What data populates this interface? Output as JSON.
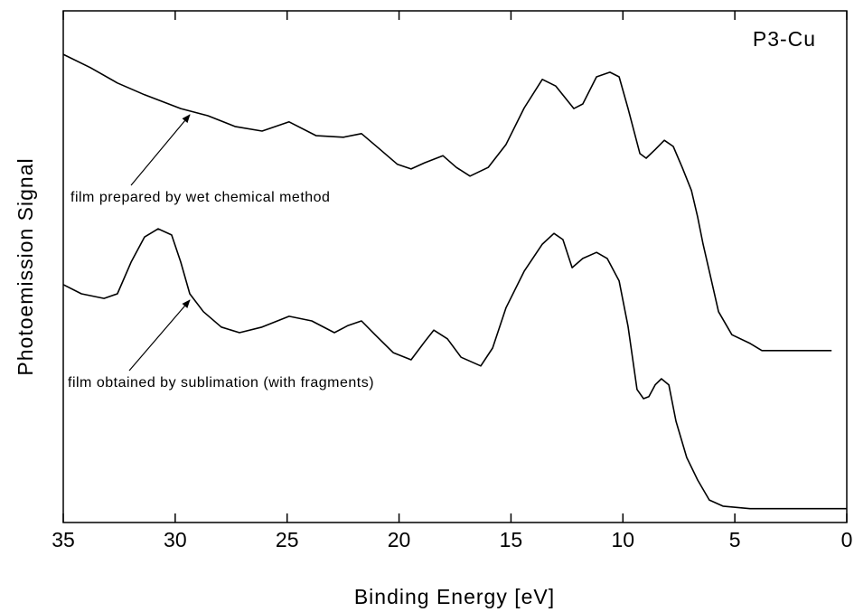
{
  "chart_data": {
    "type": "line",
    "x_label": "Binding Energy [eV]",
    "y_label": "Photoemission Signal",
    "xlim": [
      35,
      0
    ],
    "ylim": [
      0,
      100
    ],
    "xticks": [
      35,
      30,
      25,
      20,
      15,
      10,
      5,
      0
    ],
    "annotations": [
      "P3-Cu",
      "film prepared by wet chemical method",
      "film obtained by sublimation (with fragments)"
    ],
    "series": [
      {
        "color": "#000000",
        "x": [
          35.0,
          33.79,
          32.58,
          31.37,
          29.75,
          28.54,
          27.33,
          26.12,
          24.91,
          23.7,
          22.49,
          21.68,
          20.87,
          20.07,
          19.46,
          18.86,
          18.04,
          17.44,
          16.83,
          16.02,
          15.22,
          14.41,
          13.6,
          13.0,
          12.19,
          11.79,
          11.18,
          10.58,
          10.17,
          9.77,
          9.24,
          8.96,
          8.56,
          8.15,
          7.75,
          7.35,
          6.94,
          6.66,
          6.42,
          6.14,
          5.73,
          5.13,
          4.32,
          3.79,
          0.68
        ],
        "values": [
          91.5,
          88.9,
          85.9,
          83.6,
          80.9,
          79.5,
          77.4,
          76.5,
          78.3,
          75.6,
          75.3,
          76.0,
          73.0,
          70.0,
          69.1,
          70.3,
          71.7,
          69.4,
          67.7,
          69.4,
          73.9,
          81.0,
          86.6,
          85.3,
          80.9,
          81.8,
          87.1,
          88.0,
          87.1,
          80.9,
          72.1,
          71.2,
          72.9,
          74.7,
          73.5,
          69.4,
          64.9,
          59.7,
          54.4,
          49.1,
          41.2,
          36.7,
          35.0,
          33.6,
          33.6
        ]
      },
      {
        "color": "#000000",
        "x": [
          35.0,
          34.19,
          33.18,
          32.58,
          31.97,
          31.37,
          30.76,
          30.16,
          29.75,
          29.35,
          28.74,
          27.94,
          27.13,
          26.12,
          24.91,
          23.9,
          22.89,
          22.28,
          21.68,
          21.07,
          20.26,
          19.46,
          18.86,
          18.45,
          17.84,
          17.23,
          16.35,
          15.82,
          15.22,
          14.41,
          13.6,
          13.08,
          12.68,
          12.27,
          11.79,
          11.18,
          10.7,
          10.17,
          9.77,
          9.37,
          9.08,
          8.84,
          8.56,
          8.28,
          7.95,
          7.63,
          7.15,
          6.66,
          6.14,
          5.53,
          4.32,
          0.0
        ],
        "values": [
          46.5,
          44.7,
          43.8,
          44.7,
          50.9,
          55.8,
          57.4,
          56.2,
          50.9,
          44.7,
          41.2,
          38.2,
          37.1,
          38.2,
          40.3,
          39.4,
          37.1,
          38.5,
          39.4,
          36.7,
          33.2,
          31.8,
          35.3,
          37.6,
          35.9,
          32.3,
          30.6,
          34.1,
          42.0,
          49.1,
          54.4,
          56.5,
          55.3,
          49.8,
          51.6,
          52.8,
          51.6,
          47.2,
          38.3,
          26.0,
          24.2,
          24.6,
          26.9,
          28.1,
          26.9,
          19.8,
          12.7,
          8.3,
          4.4,
          3.2,
          2.7,
          2.7
        ]
      }
    ]
  }
}
